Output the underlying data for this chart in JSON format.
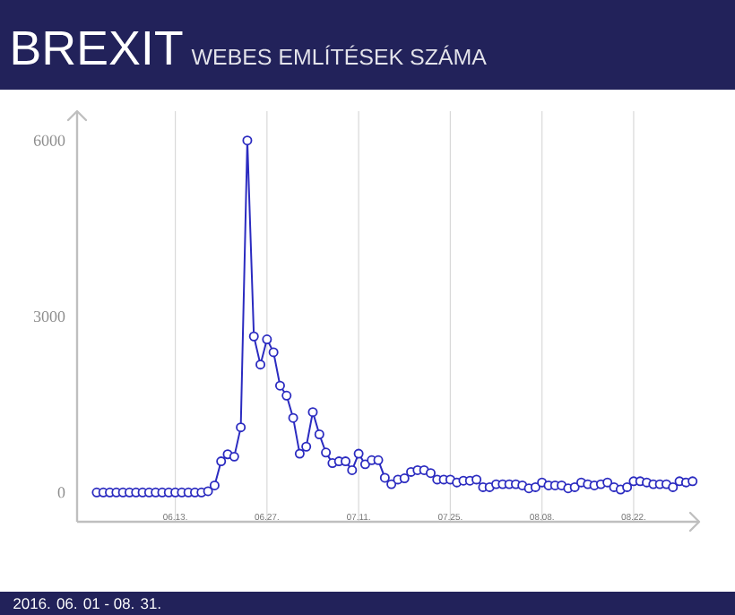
{
  "chart_data": {
    "type": "line",
    "title": "BREXIT",
    "subtitle": "WEBES EMLÍTÉSEK SZÁMA",
    "annotations": [
      "2016. 06. 01 - 08. 31."
    ],
    "x": [
      "2016-06-01",
      "2016-06-02",
      "2016-06-03",
      "2016-06-04",
      "2016-06-05",
      "2016-06-06",
      "2016-06-07",
      "2016-06-08",
      "2016-06-09",
      "2016-06-10",
      "2016-06-11",
      "2016-06-12",
      "2016-06-13",
      "2016-06-14",
      "2016-06-15",
      "2016-06-16",
      "2016-06-17",
      "2016-06-18",
      "2016-06-19",
      "2016-06-20",
      "2016-06-21",
      "2016-06-22",
      "2016-06-23",
      "2016-06-24",
      "2016-06-25",
      "2016-06-26",
      "2016-06-27",
      "2016-06-28",
      "2016-06-29",
      "2016-06-30",
      "2016-07-01",
      "2016-07-02",
      "2016-07-03",
      "2016-07-04",
      "2016-07-05",
      "2016-07-06",
      "2016-07-07",
      "2016-07-08",
      "2016-07-09",
      "2016-07-10",
      "2016-07-11",
      "2016-07-12",
      "2016-07-13",
      "2016-07-14",
      "2016-07-15",
      "2016-07-16",
      "2016-07-17",
      "2016-07-18",
      "2016-07-19",
      "2016-07-20",
      "2016-07-21",
      "2016-07-22",
      "2016-07-23",
      "2016-07-24",
      "2016-07-25",
      "2016-07-26",
      "2016-07-27",
      "2016-07-28",
      "2016-07-29",
      "2016-07-30",
      "2016-07-31",
      "2016-08-01",
      "2016-08-02",
      "2016-08-03",
      "2016-08-04",
      "2016-08-05",
      "2016-08-06",
      "2016-08-07",
      "2016-08-08",
      "2016-08-09",
      "2016-08-10",
      "2016-08-11",
      "2016-08-12",
      "2016-08-13",
      "2016-08-14",
      "2016-08-15",
      "2016-08-16",
      "2016-08-17",
      "2016-08-18",
      "2016-08-19",
      "2016-08-20",
      "2016-08-21",
      "2016-08-22",
      "2016-08-23",
      "2016-08-24",
      "2016-08-25",
      "2016-08-26",
      "2016-08-27",
      "2016-08-28",
      "2016-08-29",
      "2016-08-30",
      "2016-08-31"
    ],
    "values": [
      0,
      0,
      0,
      0,
      0,
      0,
      0,
      0,
      0,
      0,
      0,
      0,
      0,
      0,
      0,
      0,
      0,
      20,
      120,
      530,
      650,
      610,
      1110,
      6000,
      2660,
      2180,
      2610,
      2390,
      1820,
      1650,
      1270,
      660,
      780,
      1370,
      990,
      680,
      500,
      530,
      530,
      380,
      660,
      480,
      550,
      550,
      250,
      140,
      220,
      240,
      350,
      380,
      380,
      330,
      220,
      220,
      220,
      170,
      200,
      200,
      220,
      90,
      90,
      140,
      140,
      140,
      140,
      120,
      70,
      90,
      170,
      120,
      120,
      120,
      70,
      90,
      170,
      140,
      120,
      140,
      170,
      90,
      50,
      90,
      190,
      190,
      170,
      140,
      140,
      140,
      90,
      190,
      170,
      190
    ],
    "color": "#2b2bc0",
    "marker": "circle",
    "line_style": "solid",
    "grid": "x",
    "xlim": [
      "2016-05-29",
      "2016-09-01"
    ],
    "ylim": [
      -500,
      6500
    ],
    "yticks": [
      0,
      3000,
      6000
    ],
    "xticks": [
      {
        "value": "2016-06-13",
        "label": "06.13."
      },
      {
        "value": "2016-06-27",
        "label": "06.27."
      },
      {
        "value": "2016-07-11",
        "label": "07.11."
      },
      {
        "value": "2016-07-25",
        "label": "07.25."
      },
      {
        "value": "2016-08-08",
        "label": "08.08."
      },
      {
        "value": "2016-08-22",
        "label": "08.22."
      }
    ]
  }
}
